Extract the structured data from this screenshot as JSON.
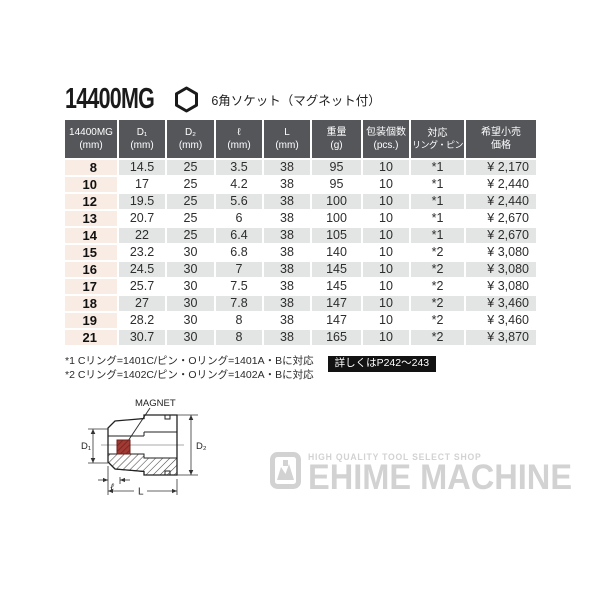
{
  "title": {
    "model": "14400MG",
    "subtitle": "6角ソケット（マグネット付）"
  },
  "table": {
    "headers": [
      {
        "line1": "14400MG",
        "line2": "(mm)"
      },
      {
        "line1": "D₁",
        "line2": "(mm)"
      },
      {
        "line1": "D₂",
        "line2": "(mm)"
      },
      {
        "line1": "ℓ",
        "line2": "(mm)"
      },
      {
        "line1": "L",
        "line2": "(mm)"
      },
      {
        "line1": "重量",
        "line2": "(g)"
      },
      {
        "line1": "包装個数",
        "line2": "(pcs.)"
      },
      {
        "line1": "対応",
        "line2": "リング・ピン"
      },
      {
        "line1": "希望小売",
        "line2": "価格"
      }
    ],
    "rows": [
      [
        "8",
        "14.5",
        "25",
        "3.5",
        "38",
        "95",
        "10",
        "*1",
        "¥ 2,170"
      ],
      [
        "10",
        "17",
        "25",
        "4.2",
        "38",
        "95",
        "10",
        "*1",
        "¥ 2,440"
      ],
      [
        "12",
        "19.5",
        "25",
        "5.6",
        "38",
        "100",
        "10",
        "*1",
        "¥ 2,440"
      ],
      [
        "13",
        "20.7",
        "25",
        "6",
        "38",
        "100",
        "10",
        "*1",
        "¥ 2,670"
      ],
      [
        "14",
        "22",
        "25",
        "6.4",
        "38",
        "105",
        "10",
        "*1",
        "¥ 2,670"
      ],
      [
        "15",
        "23.2",
        "30",
        "6.8",
        "38",
        "140",
        "10",
        "*2",
        "¥ 3,080"
      ],
      [
        "16",
        "24.5",
        "30",
        "7",
        "38",
        "145",
        "10",
        "*2",
        "¥ 3,080"
      ],
      [
        "17",
        "25.7",
        "30",
        "7.5",
        "38",
        "145",
        "10",
        "*2",
        "¥ 3,080"
      ],
      [
        "18",
        "27",
        "30",
        "7.8",
        "38",
        "147",
        "10",
        "*2",
        "¥ 3,460"
      ],
      [
        "19",
        "28.2",
        "30",
        "8",
        "38",
        "147",
        "10",
        "*2",
        "¥ 3,460"
      ],
      [
        "21",
        "30.7",
        "30",
        "8",
        "38",
        "165",
        "10",
        "*2",
        "¥ 3,870"
      ]
    ]
  },
  "footnotes": {
    "note1": "*1 Cリング=1401C/ピン・Oリング=1401A・Bに対応",
    "note2": "*2 Cリング=1402C/ピン・Oリング=1402A・Bに対応",
    "badge": "詳しくはP242～243"
  },
  "diagram": {
    "labels": {
      "magnet": "MAGNET",
      "d1": "D₁",
      "d2": "D₂",
      "l_small": "ℓ",
      "l": "L"
    },
    "magnet_color": "#a03a33"
  },
  "logo": {
    "tagline": "HIGH QUALITY TOOL SELECT SHOP",
    "name": "EHIME MACHINE"
  },
  "colors": {
    "header_bg": "#54565a",
    "size_col_bg": "#f8ece4",
    "stripe_bg": "#e3e4e4",
    "badge_bg": "#121212",
    "logo_gray": "#d2d2d2"
  }
}
